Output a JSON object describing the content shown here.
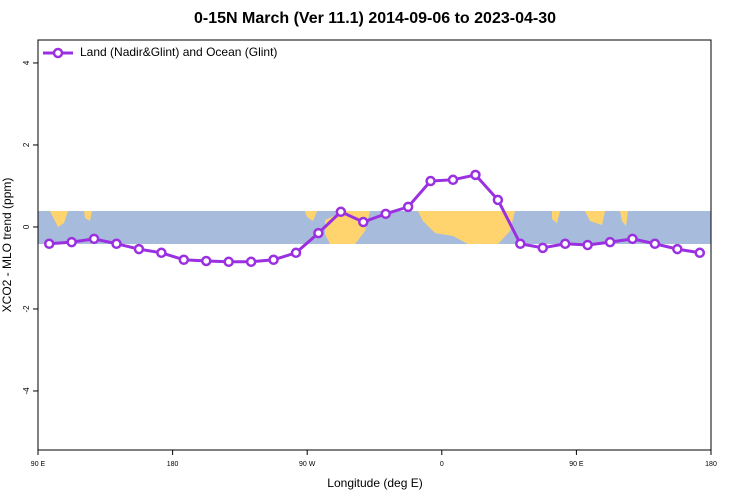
{
  "chart_data": {
    "type": "line",
    "title": "0-15N March (Ver 11.1)   2014-09-06 to 2023-04-30",
    "x_label": "Longitude (deg E)",
    "y_label": "XCO2 - MLO trend (ppm)",
    "x": [
      97.5,
      112.5,
      127.5,
      142.5,
      157.5,
      172.5,
      187.5,
      202.5,
      217.5,
      232.5,
      247.5,
      262.5,
      277.5,
      292.5,
      307.5,
      322.5,
      337.5,
      352.5,
      367.5,
      382.5,
      397.5,
      412.5,
      427.5,
      442.5,
      457.5,
      472.5,
      487.5,
      502.5,
      517.5,
      532.5
    ],
    "series": [
      {
        "name": "Land (Nadir&Glint) and Ocean (Glint)",
        "color": "#9b30e0",
        "values": [
          -0.41,
          -0.37,
          -0.29,
          -0.41,
          -0.54,
          -0.63,
          -0.8,
          -0.83,
          -0.85,
          -0.85,
          -0.8,
          -0.63,
          -0.15,
          0.37,
          0.12,
          0.32,
          0.49,
          1.12,
          1.15,
          1.27,
          0.66,
          -0.41,
          -0.51,
          -0.41,
          -0.44,
          -0.37,
          -0.29,
          -0.41,
          -0.54,
          -0.63
        ]
      }
    ],
    "xlim": [
      90,
      540
    ],
    "xticks": [
      {
        "value": 90,
        "label": "90 E"
      },
      {
        "value": 180,
        "label": "180"
      },
      {
        "value": 270,
        "label": "90 W"
      },
      {
        "value": 360,
        "label": "0"
      },
      {
        "value": 450,
        "label": "90 E"
      },
      {
        "value": 540,
        "label": "180"
      }
    ],
    "ylim": [
      -5.44,
      4.56
    ],
    "yticks": [
      -4,
      -2,
      0,
      2,
      4
    ],
    "legend": "top-left"
  }
}
